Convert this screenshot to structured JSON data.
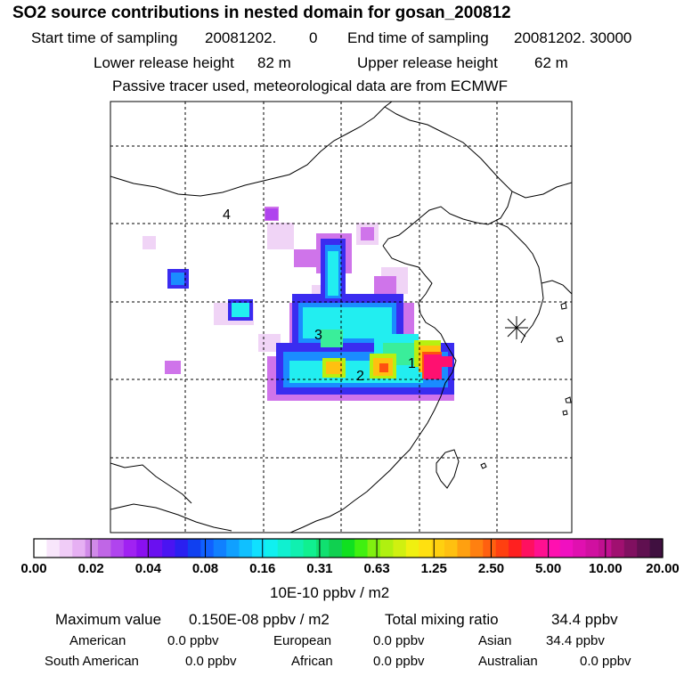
{
  "title": "SO2 source contributions in nested domain for gosan_200812",
  "sampling": {
    "start_label": "Start time of sampling",
    "start_value": "20081202.",
    "start_time": "0",
    "end_label": "End time of sampling",
    "end_value": "20081202. 30000"
  },
  "release": {
    "lower_label": "Lower release height",
    "lower_value": "82 m",
    "upper_label": "Upper release height",
    "upper_value": "62 m"
  },
  "note": "Passive tracer used, meteorological data are from ECMWF",
  "map": {
    "markers": [
      "1",
      "2",
      "3",
      "4"
    ],
    "receptor_symbol": "gosan-receptor-star"
  },
  "colorbar": {
    "labels": [
      "0.00",
      "0.02",
      "0.04",
      "0.08",
      "0.16",
      "0.31",
      "0.63",
      "1.25",
      "2.50",
      "5.00",
      "10.00",
      "20.00"
    ],
    "colors": [
      "#ffffff",
      "#f8e6fb",
      "#f0ccf7",
      "#e6b0f3",
      "#d08ae8",
      "#c066e6",
      "#b044ee",
      "#a022f2",
      "#8a10f0",
      "#6a10f0",
      "#4a14f2",
      "#2a20f0",
      "#1040f0",
      "#1060ff",
      "#1080ff",
      "#10a0ff",
      "#10c0ff",
      "#10e0ff",
      "#10f0f0",
      "#10f0d0",
      "#10f0b0",
      "#10f090",
      "#10e070",
      "#10d050",
      "#10e020",
      "#40f010",
      "#80f010",
      "#b0f010",
      "#d0f010",
      "#f0f010",
      "#ffe010",
      "#ffd010",
      "#ffc010",
      "#ffa010",
      "#ff8010",
      "#ff6010",
      "#ff4010",
      "#ff2020",
      "#ff1060",
      "#ff1090",
      "#ff10b0",
      "#f010c0",
      "#e010b0",
      "#d010a0",
      "#c01090",
      "#a01070",
      "#801060",
      "#601050",
      "#401040"
    ],
    "unit": "10E-10 ppbv / m2"
  },
  "summary": {
    "max_label": "Maximum value",
    "max_value": "0.150E-08 ppbv / m2",
    "total_label": "Total mixing ratio",
    "total_value": "34.4 ppbv"
  },
  "regions": [
    {
      "name": "American",
      "value": "0.0 ppbv"
    },
    {
      "name": "European",
      "value": "0.0 ppbv"
    },
    {
      "name": "Asian",
      "value": "34.4 ppbv"
    },
    {
      "name": "South American",
      "value": "0.0 ppbv"
    },
    {
      "name": "African",
      "value": "0.0 ppbv"
    },
    {
      "name": "Australian",
      "value": "0.0 ppbv"
    }
  ]
}
